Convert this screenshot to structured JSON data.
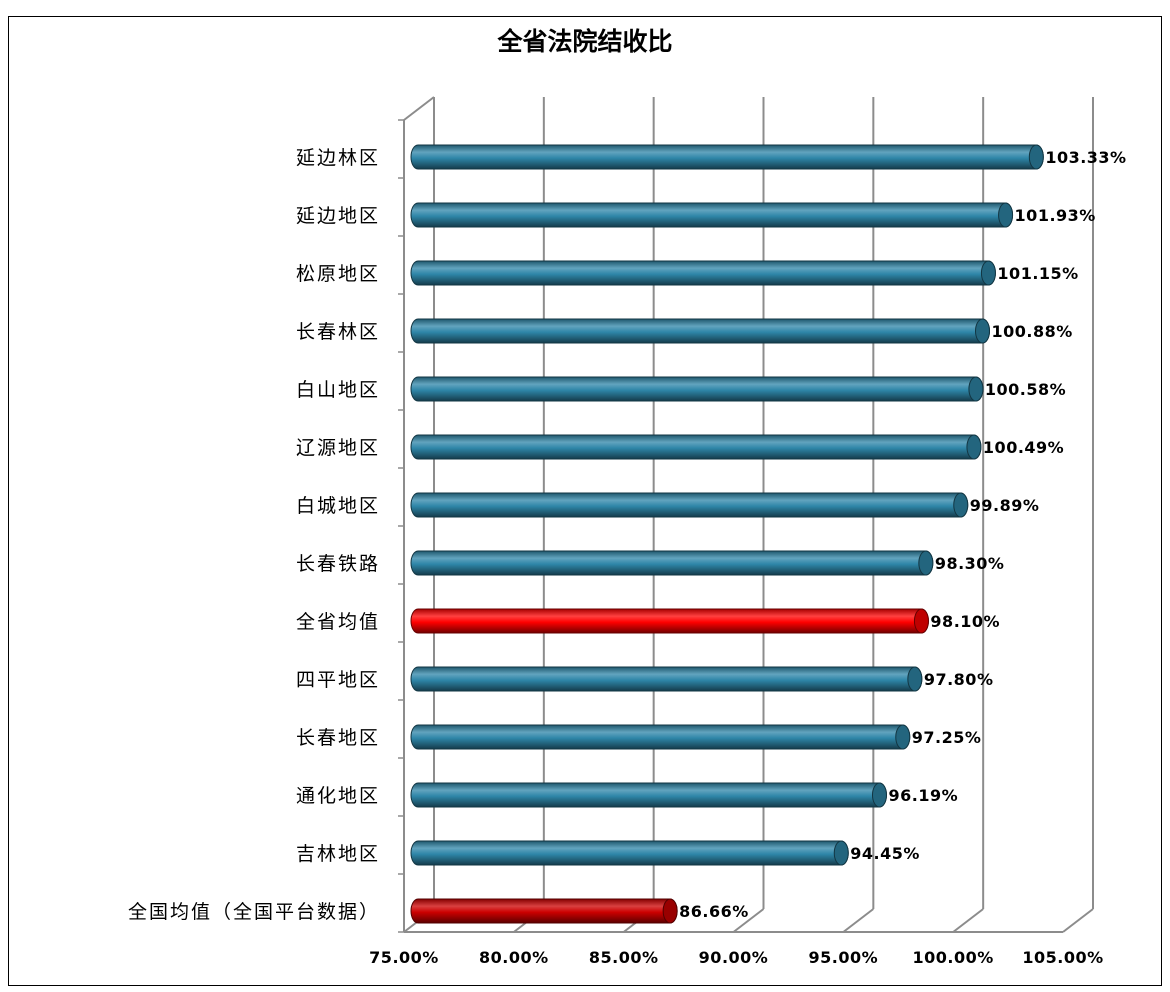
{
  "chart_data": {
    "type": "bar",
    "orientation": "horizontal",
    "style": "3d-cylinder",
    "title": "全省法院结收比",
    "categories": [
      "延边林区",
      "延边地区",
      "松原地区",
      "长春林区",
      "白山地区",
      "辽源地区",
      "白城地区",
      "长春铁路",
      "全省均值",
      "四平地区",
      "长春地区",
      "通化地区",
      "吉林地区",
      "全国均值（全国平台数据）"
    ],
    "values": [
      103.33,
      101.93,
      101.15,
      100.88,
      100.58,
      100.49,
      99.89,
      98.3,
      98.1,
      97.8,
      97.25,
      96.19,
      94.45,
      86.66
    ],
    "value_labels": [
      "103.33%",
      "101.93%",
      "101.15%",
      "100.88%",
      "100.58%",
      "100.49%",
      "99.89%",
      "98.30%",
      "98.10%",
      "97.80%",
      "97.25%",
      "96.19%",
      "94.45%",
      "86.66%"
    ],
    "bar_colors": [
      "#2e86a8",
      "#2e86a8",
      "#2e86a8",
      "#2e86a8",
      "#2e86a8",
      "#2e86a8",
      "#2e86a8",
      "#2e86a8",
      "#ff0000",
      "#2e86a8",
      "#2e86a8",
      "#2e86a8",
      "#2e86a8",
      "#cc0000"
    ],
    "xlim": [
      75,
      105
    ],
    "x_ticks": [
      75,
      80,
      85,
      90,
      95,
      100,
      105
    ],
    "x_tick_labels": [
      "75.00%",
      "80.00%",
      "85.00%",
      "90.00%",
      "95.00%",
      "100.00%",
      "105.00%"
    ],
    "grid": true,
    "legend": "none",
    "xlabel": "",
    "ylabel": ""
  }
}
